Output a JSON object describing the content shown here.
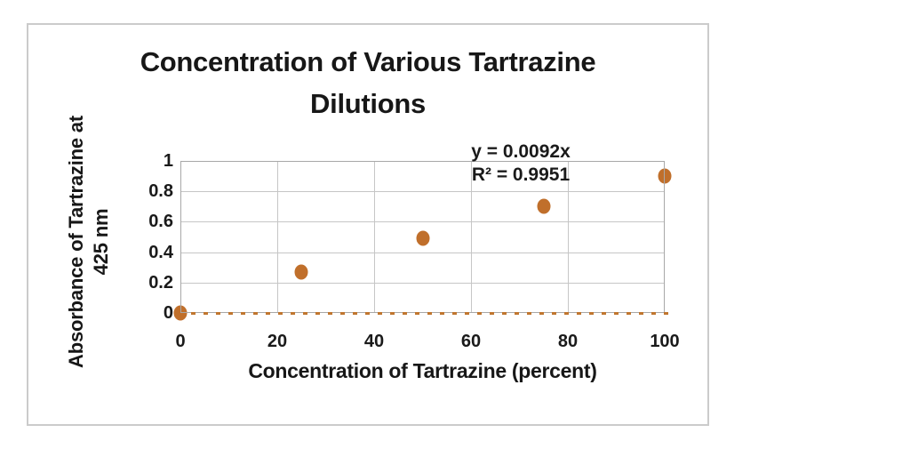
{
  "chart": {
    "title_line1": "Concentration of Various Tartrazine",
    "title_line2": "Dilutions",
    "y_axis_title_line1": "Absorbance of Tartrazine at",
    "y_axis_title_line2": "425 nm",
    "x_axis_title": "Concentration of Tartrazine (percent)",
    "equation_line1": "y = 0.0092x",
    "equation_line2": "R² = 0.9951",
    "colors": {
      "marker": "#C06F2B",
      "dashed_line": "#C0762F",
      "gridline": "#C6C6C6",
      "plot_frame": "#A8A8A8",
      "chart_border": "#CBCBCB",
      "text": "#171717"
    }
  },
  "chart_data": {
    "type": "scatter",
    "title": "Concentration of Various Tartrazine Dilutions",
    "xlabel": "Concentration of Tartrazine (percent)",
    "ylabel": "Absorbance of Tartrazine at 425 nm",
    "x": [
      0,
      25,
      50,
      75,
      100
    ],
    "y": [
      0,
      0.27,
      0.49,
      0.7,
      0.9
    ],
    "xlim": [
      0,
      100
    ],
    "ylim": [
      0,
      1
    ],
    "x_ticks": [
      0,
      20,
      40,
      60,
      80,
      100
    ],
    "y_ticks": [
      0,
      0.2,
      0.4,
      0.6,
      0.8,
      1
    ],
    "grid": true,
    "legend": "none",
    "marker_color": "#C06F2B",
    "trendline": {
      "equation": "y = 0.0092x",
      "r_squared": 0.9951,
      "label_line1": "y = 0.0092x",
      "label_line2": "R² = 0.9951",
      "style": "dashed",
      "drawn_at_y": 0
    }
  }
}
